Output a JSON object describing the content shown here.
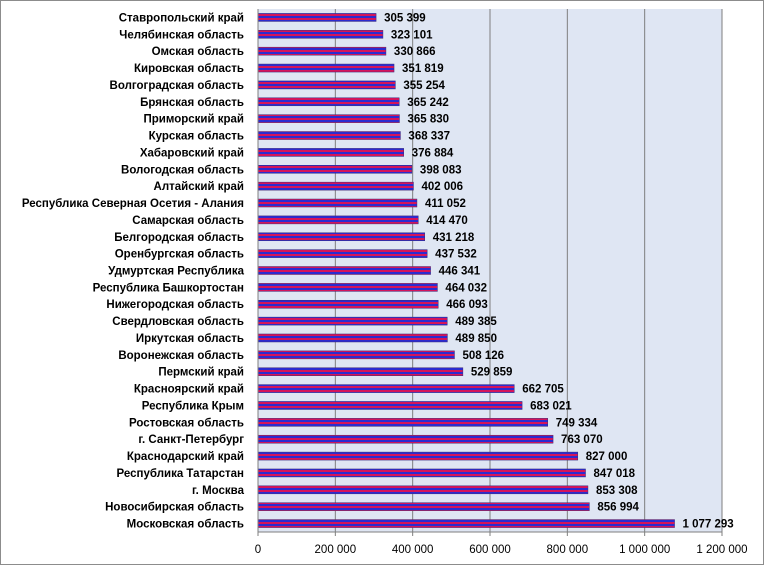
{
  "chart_data": {
    "type": "bar",
    "orientation": "horizontal",
    "categories": [
      "Ставропольский край",
      "Челябинская область",
      "Омская область",
      "Кировская область",
      "Волгоградская область",
      "Брянская область",
      "Приморский край",
      "Курская область",
      "Хабаровский край",
      "Вологодская область",
      "Алтайский край",
      "Республика Северная Осетия - Алания",
      "Самарская область",
      "Белгородская область",
      "Оренбургская область",
      "Удмуртская Республика",
      "Республика Башкортостан",
      "Нижегородская область",
      "Свердловская область",
      "Иркутская область",
      "Воронежская область",
      "Пермский край",
      "Красноярский край",
      "Республика Крым",
      "Ростовская область",
      "г. Санкт-Петербург",
      "Краснодарский край",
      "Республика Татарстан",
      "г. Москва",
      "Новосибирская область",
      "Московская область"
    ],
    "values": [
      305399,
      323101,
      330866,
      351819,
      355254,
      365242,
      365830,
      368337,
      376884,
      398083,
      402006,
      411052,
      414470,
      431218,
      437532,
      446341,
      464032,
      466093,
      489385,
      489850,
      508126,
      529859,
      662705,
      683021,
      749334,
      763070,
      827000,
      847018,
      853308,
      856994,
      1077293
    ],
    "value_labels": [
      "305 399",
      "323 101",
      "330 866",
      "351 819",
      "355 254",
      "365 242",
      "365 830",
      "368 337",
      "376 884",
      "398 083",
      "402 006",
      "411 052",
      "414 470",
      "431 218",
      "437 532",
      "446 341",
      "464 032",
      "466 093",
      "489 385",
      "489 850",
      "508 126",
      "529 859",
      "662 705",
      "683 021",
      "749 334",
      "763 070",
      "827 000",
      "847 018",
      "853 308",
      "856 994",
      "1 077 293"
    ],
    "xlim": [
      0,
      1200000
    ],
    "ticks": [
      0,
      200000,
      400000,
      600000,
      800000,
      1000000,
      1200000
    ],
    "tick_labels": [
      "0",
      "200 000",
      "400 000",
      "600 000",
      "800 000",
      "1 000 000",
      "1 200 000"
    ],
    "grid": true,
    "bar_style": "horizontal stripes",
    "colors": {
      "plot_background": "#dfe6f3",
      "gridline": "#7f7f7f",
      "bar_stripe_a": "#2b2bd0",
      "bar_stripe_b": "#d4145a",
      "frame": "#8c8c8c"
    },
    "title": "",
    "xlabel": "",
    "ylabel": ""
  }
}
